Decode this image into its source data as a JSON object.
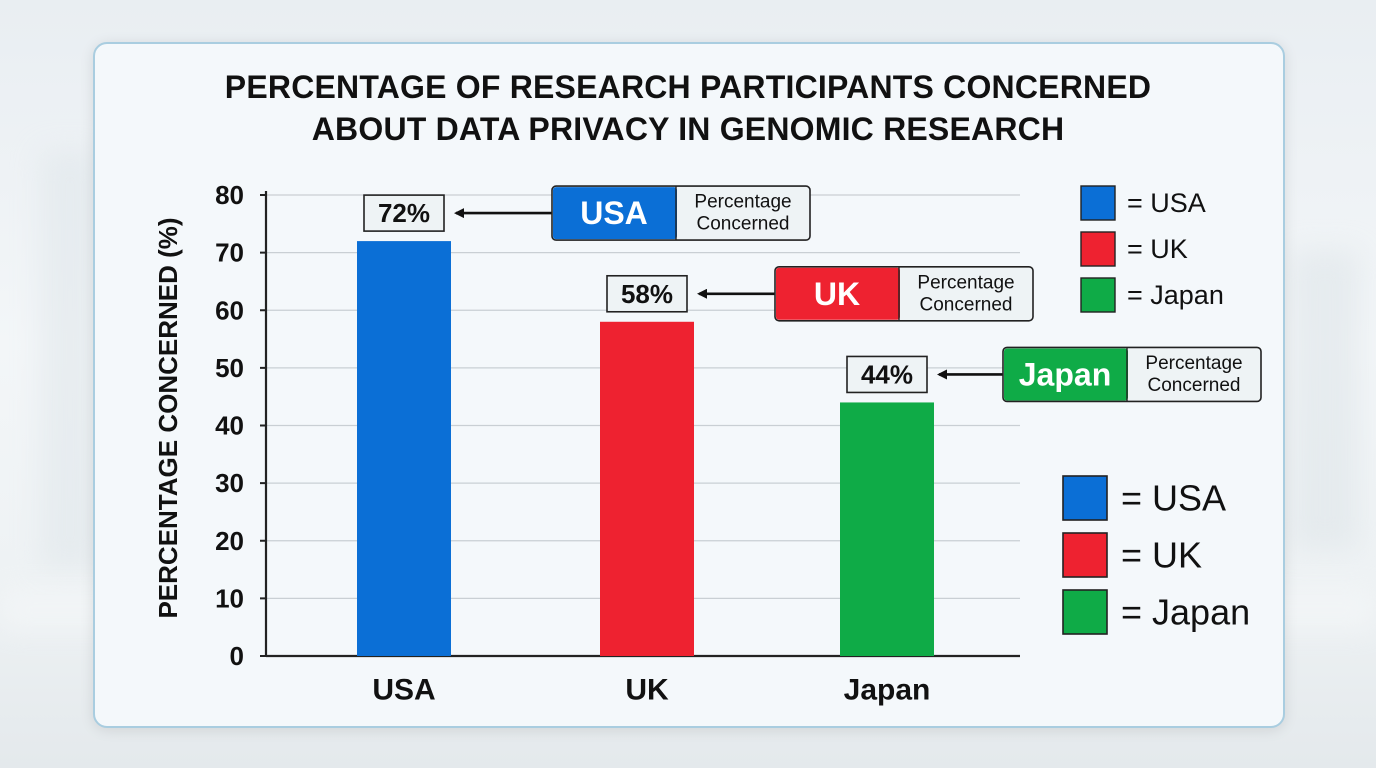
{
  "colors": {
    "usa": "#0b6fd6",
    "uk": "#ee2230",
    "japan": "#0fab47",
    "grid": "#c9cfd4",
    "axis": "#222222"
  },
  "chart_data": {
    "type": "bar",
    "title_line1": "PERCENTAGE OF RESEARCH PARTICIPANTS CONCERNED",
    "title_line2": "ABOUT DATA PRIVACY IN GENOMIC RESEARCH",
    "xlabel": "",
    "ylabel": "PERCENTAGE CONCERNED (%)",
    "ylim": [
      0,
      80
    ],
    "yticks": [
      0,
      10,
      20,
      30,
      40,
      50,
      60,
      70,
      80
    ],
    "grid": true,
    "categories": [
      "USA",
      "UK",
      "Japan"
    ],
    "values": [
      72,
      58,
      44
    ],
    "data_labels": [
      "72%",
      "58%",
      "44%"
    ],
    "callouts": [
      {
        "country": "USA",
        "text": "Percentage Concerned"
      },
      {
        "country": "UK",
        "text": "Percentage Concerned"
      },
      {
        "country": "Japan",
        "text": "Percentage Concerned"
      }
    ],
    "legend_top": [
      "= USA",
      "= UK",
      "= Japan"
    ],
    "legend_bottom": [
      "= USA",
      "= UK",
      "= Japan"
    ],
    "legend_placement": "right"
  }
}
